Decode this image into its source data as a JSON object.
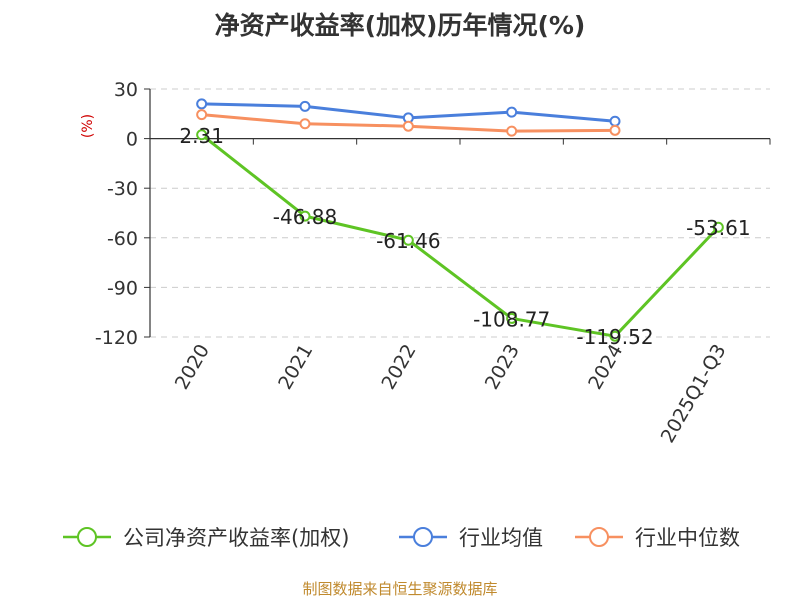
{
  "chart_data": {
    "type": "line",
    "title": "净资产收益率(加权)历年情况(%)",
    "ylabel": "(%)",
    "categories": [
      "2020",
      "2021",
      "2022",
      "2023",
      "2024",
      "2025Q1-Q3"
    ],
    "ylim": [
      -120,
      30
    ],
    "yticks": [
      30,
      0,
      -30,
      -60,
      -90,
      -120
    ],
    "grid": true,
    "legend": "bottom",
    "series": [
      {
        "name": "公司净资产收益率(加权)",
        "color": "#5ec424",
        "values": [
          2.31,
          -46.88,
          -61.46,
          -108.77,
          -119.52,
          -53.61
        ],
        "labels": [
          "2.31",
          "-46.88",
          "-61.46",
          "-108.77",
          "-119.52",
          "-53.61"
        ]
      },
      {
        "name": "行业均值",
        "color": "#4a7fdc",
        "values": [
          21,
          19.5,
          12.5,
          16,
          10.5,
          null
        ]
      },
      {
        "name": "行业中位数",
        "color": "#f79060",
        "values": [
          14.5,
          9,
          7.5,
          4.5,
          5,
          null
        ]
      }
    ]
  },
  "source": "制图数据来自恒生聚源数据库"
}
